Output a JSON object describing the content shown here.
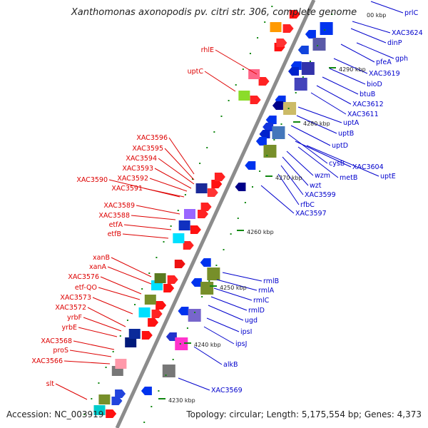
{
  "header": {
    "title": "Xanthomonas axonopodis pv. citri str. 306, complete genome"
  },
  "footer": {
    "accession": "Accession: NC_003919",
    "summary": "Topology: circular; Length: 5,175,554 bp; Genes: 4,373"
  },
  "colors": {
    "left_strand_label": "#dd0000",
    "right_strand_label": "#0000cc",
    "backbone": "#8c8c8c"
  },
  "ticks": [
    "4290 kbp",
    "4280 kbp",
    "4270 kbp",
    "4260 kbp",
    "4250 kbp",
    "4240 kbp",
    "4230 kbp"
  ],
  "partial_tick": "00 kbp",
  "left_labels": [
    "rhlE",
    "uptC",
    "XAC3596",
    "XAC3595",
    "XAC3594",
    "XAC3593",
    "XAC3592",
    "XAC3590",
    "XAC3591",
    "XAC3589",
    "XAC3588",
    "etfA",
    "etfB",
    "xanB",
    "xanA",
    "XAC3576",
    "etf-QO",
    "XAC3573",
    "XAC3572",
    "yrbF",
    "yrbE",
    "XAC3568",
    "proS",
    "XAC3566",
    "slt"
  ],
  "right_labels": [
    "prlC",
    "XAC3624",
    "dinP",
    "gph",
    "pfeA",
    "XAC3619",
    "bioD",
    "btuB",
    "XAC3612",
    "XAC3611",
    "uptA",
    "uptB",
    "uptD",
    "cysB",
    "XAC3604",
    "uptE",
    "wzm",
    "metB",
    "wzt",
    "XAC3599",
    "rfbC",
    "XAC3597",
    "rmlB",
    "rmlA",
    "rmlC",
    "rmlD",
    "ugd",
    "ipsI",
    "ipsJ",
    "alkB",
    "XAC3569"
  ]
}
